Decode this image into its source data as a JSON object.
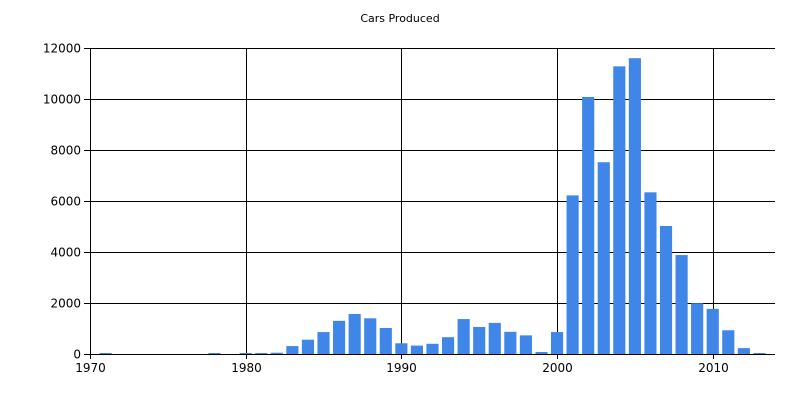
{
  "chart_data": {
    "type": "bar",
    "title": "Cars Produced",
    "xlabel": "",
    "ylabel": "",
    "xlim": [
      1970,
      2014
    ],
    "ylim": [
      0,
      12000
    ],
    "x_ticks": [
      1970,
      1980,
      1990,
      2000,
      2010
    ],
    "y_ticks": [
      0,
      2000,
      4000,
      6000,
      8000,
      10000,
      12000
    ],
    "grid": true,
    "legend": "none",
    "bar_color": "#3F86E8",
    "x": [
      1971,
      1978,
      1980,
      1981,
      1982,
      1983,
      1984,
      1985,
      1986,
      1987,
      1988,
      1989,
      1990,
      1991,
      1992,
      1993,
      1994,
      1995,
      1996,
      1997,
      1998,
      1999,
      2000,
      2001,
      2002,
      2003,
      2004,
      2005,
      2006,
      2007,
      2008,
      2009,
      2010,
      2011,
      2012,
      2013
    ],
    "values": [
      15,
      15,
      30,
      40,
      50,
      310,
      560,
      860,
      1300,
      1570,
      1400,
      1020,
      420,
      330,
      400,
      660,
      1370,
      1060,
      1220,
      870,
      730,
      80,
      860,
      6220,
      10080,
      7520,
      11280,
      11600,
      6340,
      5020,
      3880,
      1990,
      1770,
      930,
      230,
      20
    ]
  }
}
